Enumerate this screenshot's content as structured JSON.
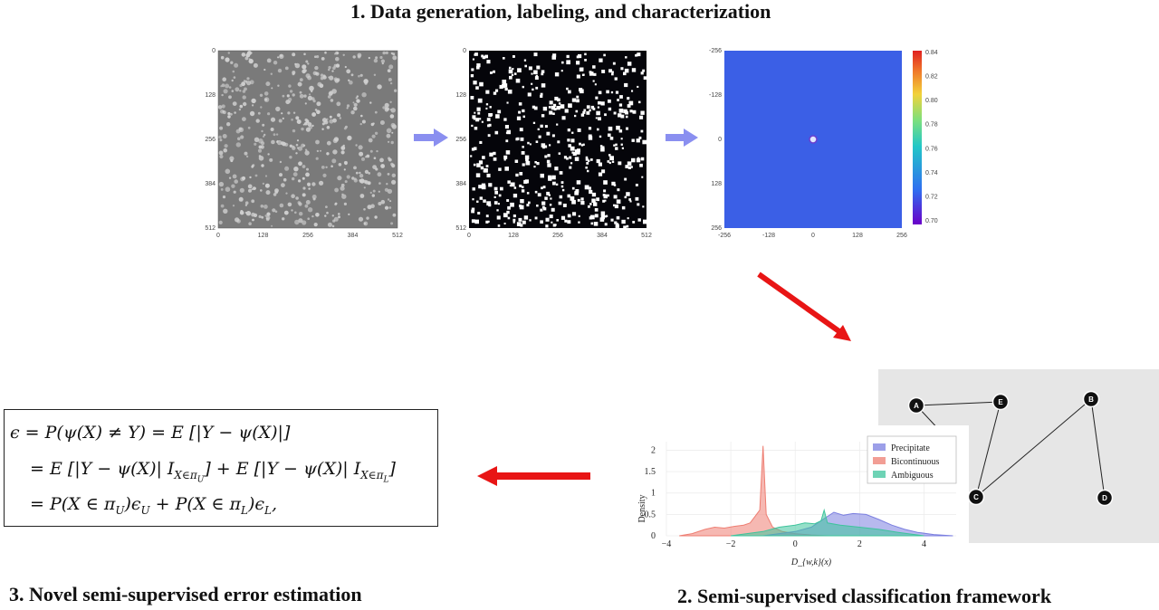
{
  "titles": {
    "step1": "1. Data generation, labeling, and characterization",
    "step2": "2. Semi-supervised classification framework",
    "step3": "3. Novel semi-supervised error estimation"
  },
  "panel1": {
    "y_ticks": [
      "0",
      "128",
      "256",
      "384",
      "512"
    ],
    "x_ticks": [
      "0",
      "128",
      "256",
      "384",
      "512"
    ]
  },
  "panel2": {
    "y_ticks": [
      "0",
      "128",
      "256",
      "384",
      "512"
    ],
    "x_ticks": [
      "0",
      "128",
      "256",
      "384",
      "512"
    ]
  },
  "panel3": {
    "y_ticks": [
      "-256",
      "-128",
      "0",
      "128",
      "256"
    ],
    "x_ticks": [
      "-256",
      "-128",
      "0",
      "128",
      "256"
    ],
    "colorbar_ticks": [
      "0.84",
      "0.82",
      "0.80",
      "0.78",
      "0.76",
      "0.74",
      "0.72",
      "0.70"
    ]
  },
  "graph": {
    "nodes": [
      {
        "id": "A",
        "label": "A"
      },
      {
        "id": "E",
        "label": "E"
      },
      {
        "id": "B",
        "label": "B"
      },
      {
        "id": "C",
        "label": "C"
      },
      {
        "id": "D",
        "label": "D"
      }
    ]
  },
  "density_chart": {
    "ylabel": "Density",
    "xlabel": "D_{w,k}(x)",
    "x_ticks": [
      "−4",
      "−2",
      "0",
      "2",
      "4"
    ],
    "y_ticks": [
      "0",
      "0.5",
      "1",
      "1.5",
      "2"
    ],
    "legend": [
      "Precipitate",
      "Bicontinuous",
      "Ambiguous"
    ],
    "colors": {
      "Precipitate": "#7b7fe0",
      "Bicontinuous": "#ee7e72",
      "Ambiguous": "#3ec49c"
    }
  },
  "formula": {
    "line1": "ϵ = P(ψ(X) ≠ Y) = E [|Y − ψ(X)|]",
    "line2": "= E [|Y − ψ(X)| I",
    "line2_sub1": "X∈π",
    "line2_sub1b": "U",
    "line2_mid": "] + E [|Y − ψ(X)| I",
    "line2_sub2": "X∈π",
    "line2_sub2b": "L",
    "line2_end": "]",
    "line3": "= P(X ∈ π",
    "line3_u": "U",
    "line3_mid": ")ϵ",
    "line3_u2": "U",
    "line3_plus": " + P(X ∈ π",
    "line3_l": "L",
    "line3_mid2": ")ϵ",
    "line3_l2": "L",
    "line3_end": ","
  }
}
